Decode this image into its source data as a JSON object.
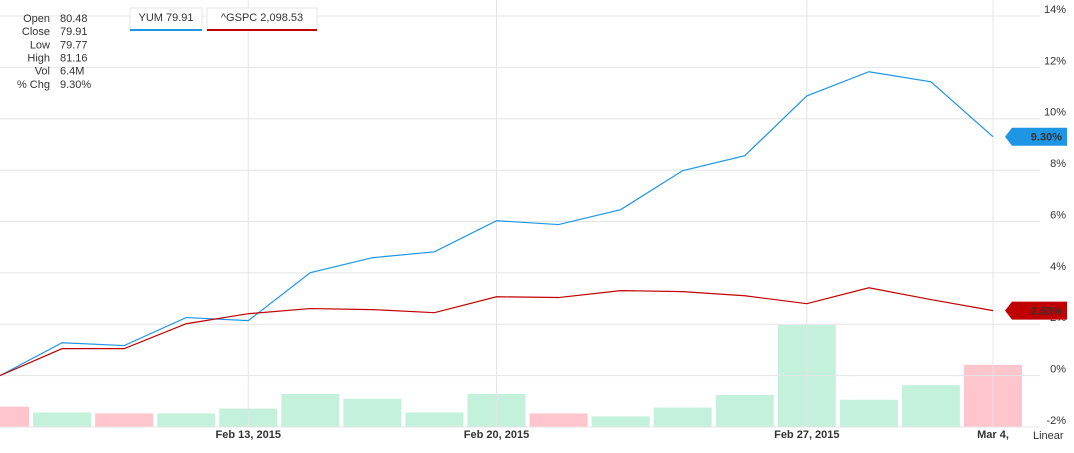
{
  "chart_data": {
    "type": "line",
    "categories": [
      null,
      null,
      null,
      null,
      "Feb 13, 2015",
      null,
      null,
      null,
      "Feb 20, 2015",
      null,
      null,
      null,
      null,
      "Feb 27, 2015",
      null,
      null,
      "Mar 4,"
    ],
    "series": [
      {
        "name": "YUM 79.91",
        "color": "#1e96e6",
        "values": [
          0,
          1.28,
          1.17,
          2.26,
          2.14,
          4.01,
          4.59,
          4.82,
          6.03,
          5.88,
          6.46,
          7.98,
          8.56,
          10.89,
          11.83,
          11.44,
          9.3
        ],
        "value_labels": [
          null,
          null,
          null,
          null,
          null,
          null,
          null,
          null,
          null,
          null,
          null,
          null,
          null,
          null,
          null,
          null,
          "9.30%"
        ]
      },
      {
        "name": "^GSPC 2,098.53",
        "color": "#c00000",
        "values": [
          0,
          1.05,
          1.05,
          2.02,
          2.41,
          2.61,
          2.57,
          2.45,
          3.07,
          3.04,
          3.31,
          3.27,
          3.11,
          2.8,
          3.42,
          2.96,
          2.53
        ],
        "value_labels": [
          null,
          null,
          null,
          null,
          null,
          null,
          null,
          null,
          null,
          null,
          null,
          null,
          null,
          null,
          null,
          null,
          "2.53%"
        ]
      }
    ],
    "volume": {
      "values": [
        2.1,
        1.5,
        1.4,
        1.4,
        1.9,
        3.4,
        2.9,
        1.5,
        3.4,
        1.4,
        1.1,
        2.0,
        3.3,
        10.5,
        2.8,
        4.3,
        6.4
      ],
      "colors": [
        "#ffc5cc",
        "#c3f1dc",
        "#ffc5cc",
        "#c3f1dc",
        "#c3f1dc",
        "#c3f1dc",
        "#c3f1dc",
        "#c3f1dc",
        "#c3f1dc",
        "#ffc5cc",
        "#c3f1dc",
        "#c3f1dc",
        "#c3f1dc",
        "#c3f1dc",
        "#c3f1dc",
        "#c3f1dc",
        "#ffc5cc"
      ]
    },
    "ylim": [
      -2,
      14
    ],
    "yticks": [
      {
        "value": -2,
        "label": "-2%"
      },
      {
        "value": 0,
        "label": "0%"
      },
      {
        "value": 2,
        "label": "2%"
      },
      {
        "value": 4,
        "label": "4%"
      },
      {
        "value": 6,
        "label": "6%"
      },
      {
        "value": 8,
        "label": "8%"
      },
      {
        "value": 10,
        "label": "10%"
      },
      {
        "value": 12,
        "label": "12%"
      },
      {
        "value": 14,
        "label": "14%"
      }
    ],
    "grid": true,
    "scale_label": "Linear",
    "info": [
      [
        "Open",
        "80.48"
      ],
      [
        "Close",
        "79.91"
      ],
      [
        "Low",
        "79.77"
      ],
      [
        "High",
        "81.16"
      ],
      [
        "Vol",
        "6.4M"
      ],
      [
        "% Chg",
        "9.30%"
      ]
    ]
  }
}
